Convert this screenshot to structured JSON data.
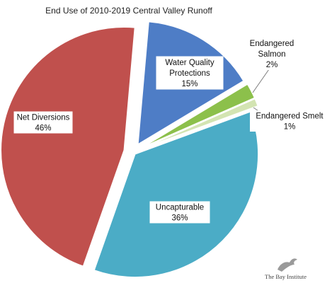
{
  "chart_data": {
    "type": "pie",
    "title": "End Use of 2010-2019 Central Valley Runoff",
    "slices": [
      {
        "label_lines": [
          "Water Quality",
          "Protections"
        ],
        "percent_label": "15%",
        "value": 15,
        "color": "#4e7dc6"
      },
      {
        "label_lines": [
          "Endangered",
          "Salmon"
        ],
        "percent_label": "2%",
        "value": 2,
        "color": "#8cc04b"
      },
      {
        "label_lines": [
          "Endangered Smelt"
        ],
        "percent_label": "1%",
        "value": 1,
        "color": "#d3e4b2"
      },
      {
        "label_lines": [
          "Uncapturable"
        ],
        "percent_label": "36%",
        "value": 36,
        "color": "#4bacc6"
      },
      {
        "label_lines": [
          "Net Diversions"
        ],
        "percent_label": "46%",
        "value": 46,
        "color": "#c0504d"
      }
    ],
    "legend": "none",
    "exploded": true
  },
  "watermark": {
    "text": "The Bay Institute"
  }
}
